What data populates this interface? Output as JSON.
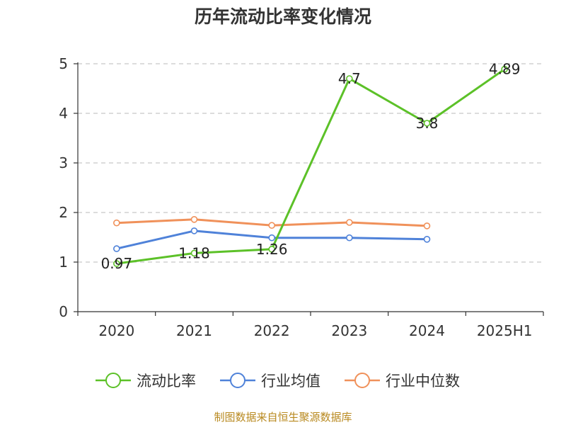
{
  "chart_data": {
    "type": "line",
    "title": "历年流动比率变化情况",
    "categories": [
      "2020",
      "2021",
      "2022",
      "2023",
      "2024",
      "2025H1"
    ],
    "ylim": [
      0,
      5
    ],
    "yticks": [
      0,
      1,
      2,
      3,
      4,
      5
    ],
    "grid": true,
    "legend_position": "bottom",
    "series": [
      {
        "name": "流动比率",
        "color": "#5cc128",
        "values": [
          0.97,
          1.18,
          1.26,
          4.7,
          3.8,
          4.89
        ],
        "labels": [
          "0.97",
          "1.18",
          "1.26",
          "4.7",
          "3.8",
          "4.89"
        ]
      },
      {
        "name": "行业均值",
        "color": "#4f82d9",
        "values": [
          1.27,
          1.63,
          1.49,
          1.49,
          1.46,
          null
        ]
      },
      {
        "name": "行业中位数",
        "color": "#f0915a",
        "values": [
          1.79,
          1.86,
          1.74,
          1.8,
          1.73,
          null
        ]
      }
    ]
  },
  "source": "制图数据来自恒生聚源数据库"
}
